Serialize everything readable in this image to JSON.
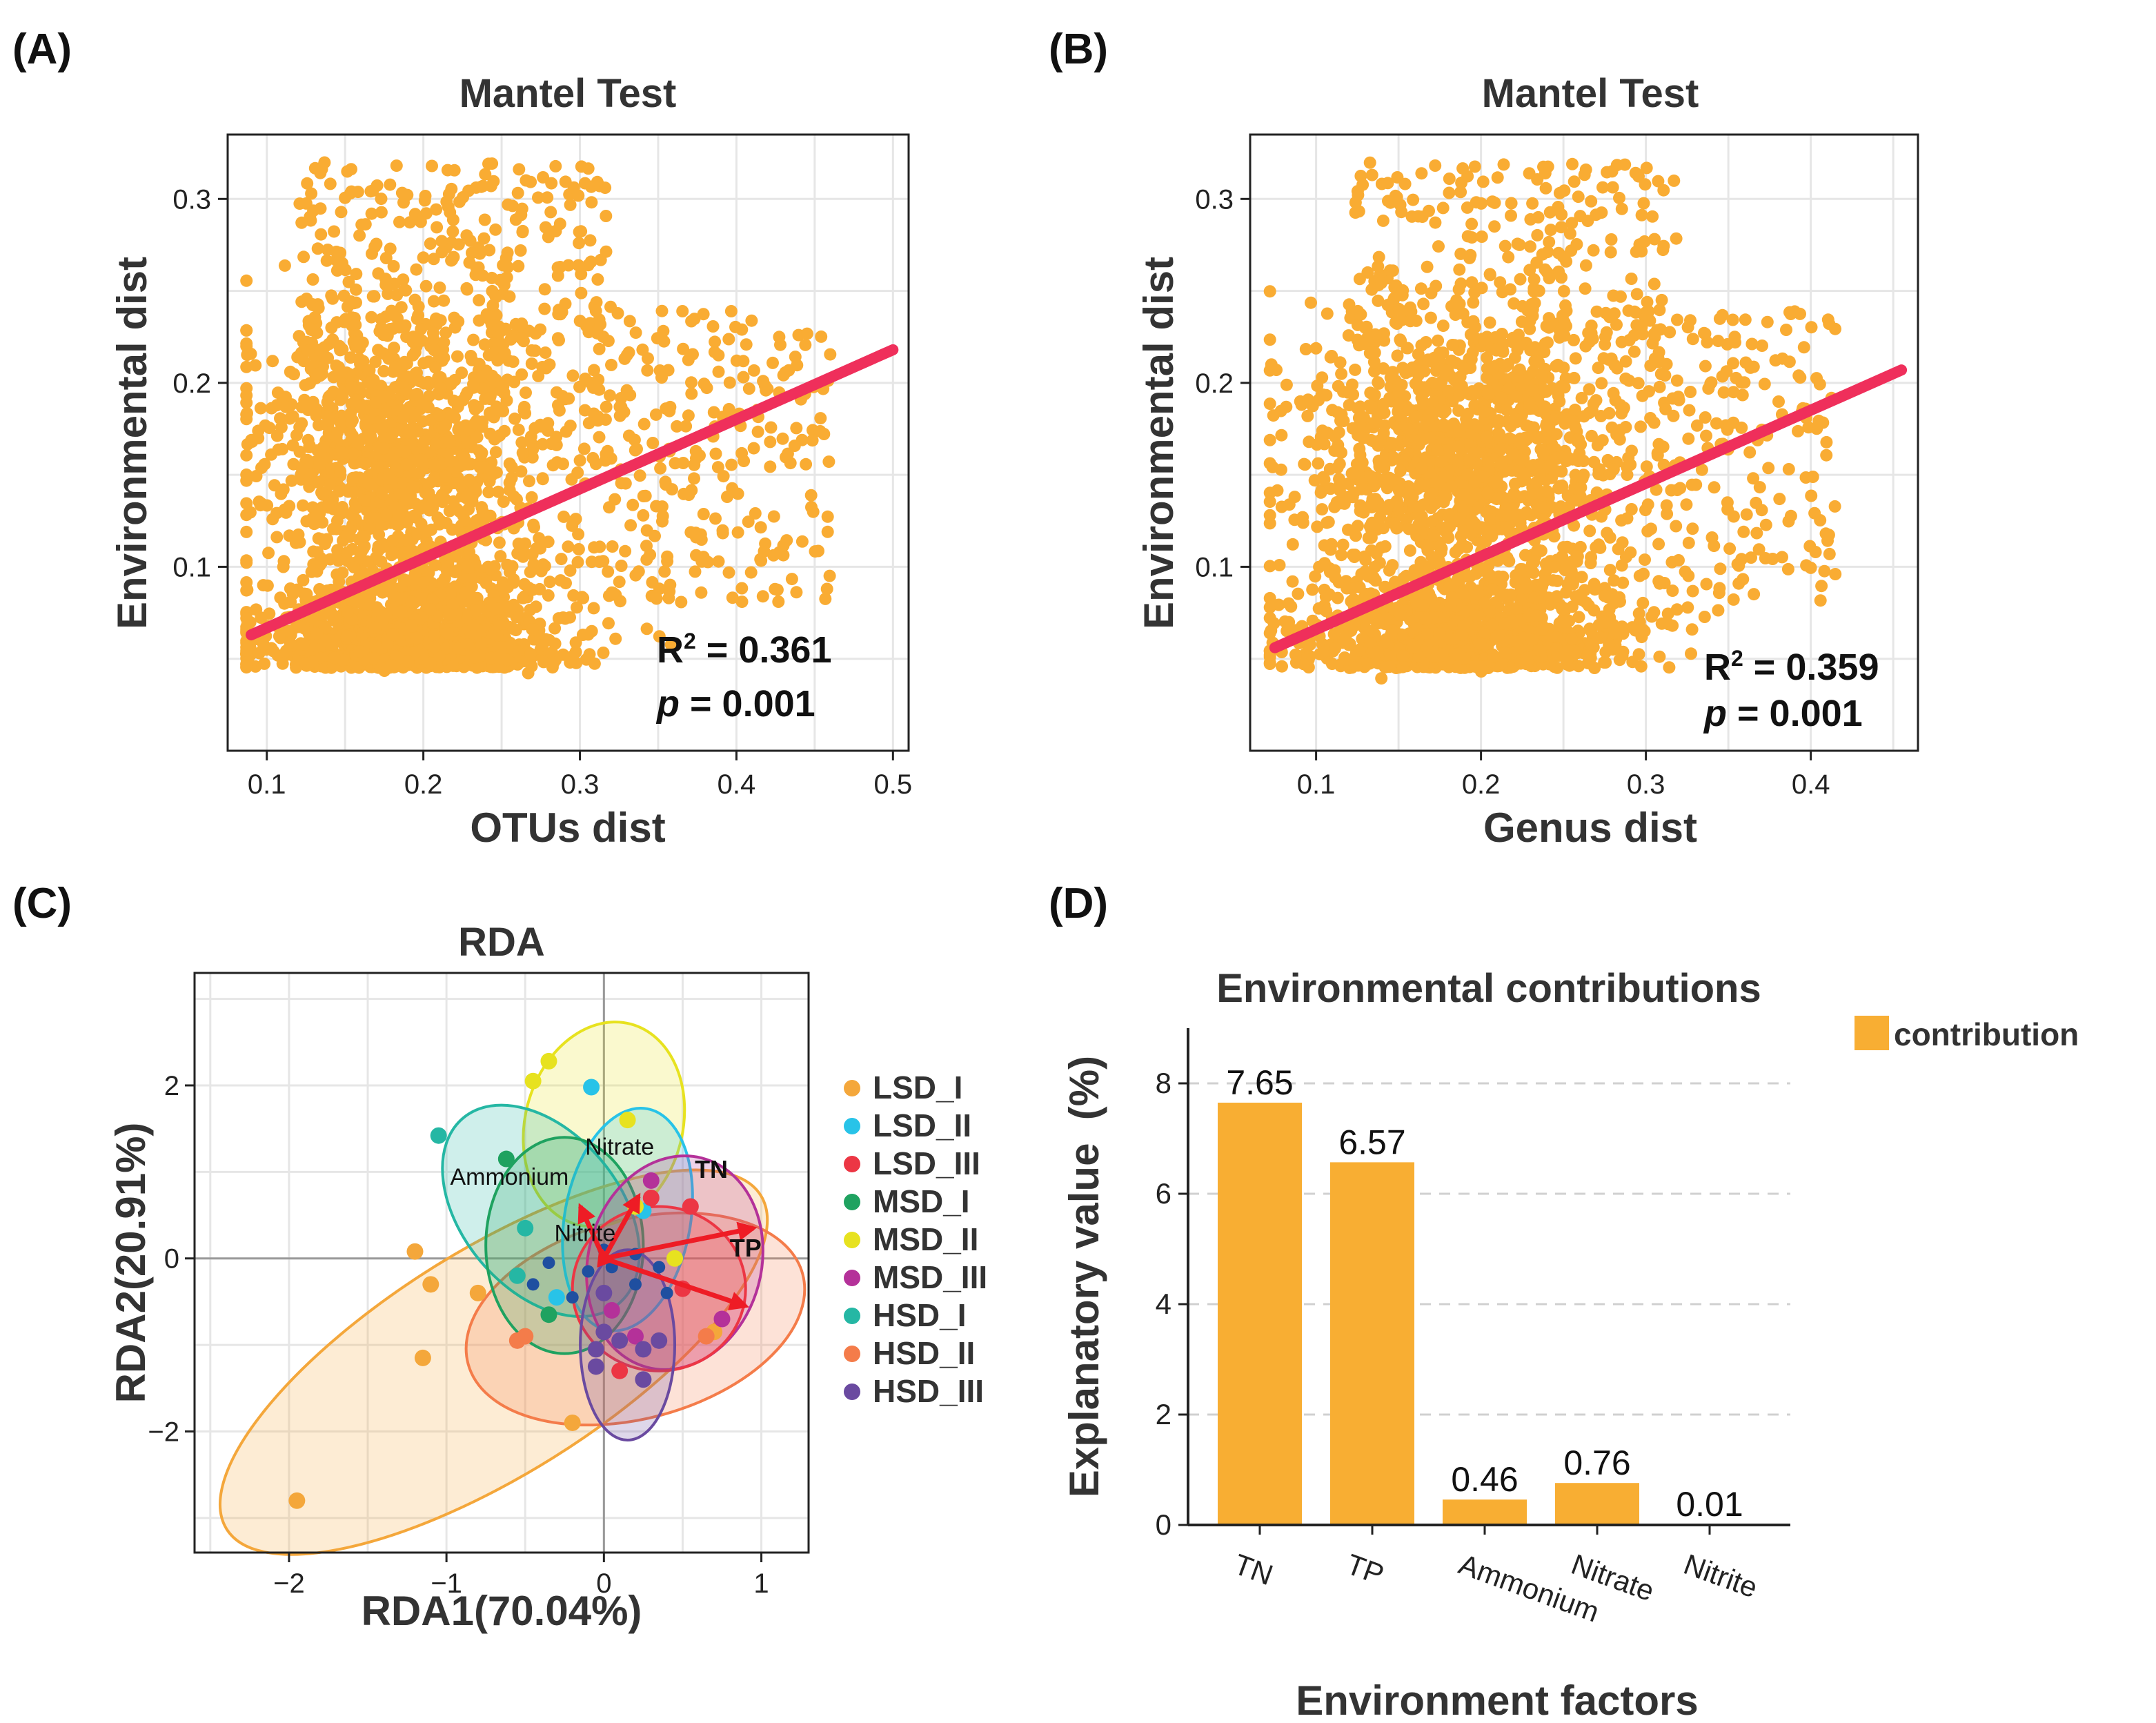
{
  "panel_labels": {
    "a": "(A)",
    "b": "(B)",
    "c": "(C)",
    "d": "(D)"
  },
  "colors": {
    "points": "#f9ac33",
    "regression": "#ef2f5b",
    "grid": "#e6e6e6",
    "bar": "#f8ae33",
    "vector": "#ee1c25",
    "LSD_I": "#f4a73b",
    "LSD_II": "#28c3e8",
    "LSD_III": "#ec3644",
    "MSD_I": "#1fa260",
    "MSD_II": "#e7e21f",
    "MSD_III": "#b43199",
    "HSD_I": "#25b7a4",
    "HSD_II": "#f47c4a",
    "HSD_III": "#6a4aa0",
    "centroid": "#1f4fa0"
  },
  "chart_data": [
    {
      "id": "A",
      "type": "scatter",
      "title": "Mantel Test",
      "xlabel": "OTUs dist",
      "ylabel": "Environmental dist",
      "xlim": [
        0.075,
        0.51
      ],
      "ylim": [
        0.0,
        0.335
      ],
      "xticks": [
        0.1,
        0.2,
        0.3,
        0.4,
        0.5
      ],
      "xtick_labels": [
        "0.1",
        "0.2",
        "0.3",
        "0.4",
        "0.5"
      ],
      "yticks": [
        0.1,
        0.2,
        0.3
      ],
      "ytick_labels": [
        "0.1",
        "0.2",
        "0.3"
      ],
      "regression": {
        "x": [
          0.09,
          0.5
        ],
        "y": [
          0.063,
          0.218
        ]
      },
      "stats": {
        "r2_prefix": "R",
        "r2_sup": "2",
        "r2_value": " = 0.361",
        "p_symbol": "p",
        "p_value": " = 0.001"
      },
      "n_points": 2800,
      "seed": 11
    },
    {
      "id": "B",
      "type": "scatter",
      "title": "Mantel Test",
      "xlabel": "Genus dist",
      "ylabel": "Environmental dist",
      "xlim": [
        0.06,
        0.465
      ],
      "ylim": [
        0.0,
        0.335
      ],
      "xticks": [
        0.1,
        0.2,
        0.3,
        0.4
      ],
      "xtick_labels": [
        "0.1",
        "0.2",
        "0.3",
        "0.4"
      ],
      "yticks": [
        0.1,
        0.2,
        0.3
      ],
      "ytick_labels": [
        "0.1",
        "0.2",
        "0.3"
      ],
      "regression": {
        "x": [
          0.075,
          0.455
        ],
        "y": [
          0.056,
          0.207
        ]
      },
      "stats": {
        "r2_prefix": "R",
        "r2_sup": "2",
        "r2_value": " = 0.359",
        "p_symbol": "p",
        "p_value": " = 0.001"
      },
      "n_points": 2800,
      "seed": 23
    },
    {
      "id": "C",
      "type": "scatter",
      "title": "RDA",
      "xlabel": "RDA1(70.04%)",
      "ylabel": "RDA2(20.91%)",
      "xlim": [
        -2.6,
        1.3
      ],
      "ylim": [
        -3.4,
        3.3
      ],
      "xticks": [
        -2,
        -1,
        0,
        1
      ],
      "xtick_labels": [
        "−2",
        "−1",
        "0",
        "1"
      ],
      "yticks": [
        -2,
        0,
        2
      ],
      "ytick_labels": [
        "−2",
        "0",
        "2"
      ],
      "legend": [
        "LSD_I",
        "LSD_II",
        "LSD_III",
        "MSD_I",
        "MSD_II",
        "MSD_III",
        "HSD_I",
        "HSD_II",
        "HSD_III"
      ],
      "ellipses": [
        {
          "group": "LSD_I",
          "cx": -0.7,
          "cy": -1.2,
          "rx": 2.0,
          "ry": 1.3,
          "angle": 32
        },
        {
          "group": "HSD_II",
          "cx": 0.2,
          "cy": -0.7,
          "rx": 1.1,
          "ry": 1.15,
          "angle": 15
        },
        {
          "group": "MSD_II",
          "cx": 0.0,
          "cy": 1.55,
          "rx": 0.5,
          "ry": 1.2,
          "angle": -15
        },
        {
          "group": "HSD_I",
          "cx": -0.4,
          "cy": 0.55,
          "rx": 0.5,
          "ry": 1.4,
          "angle": 40
        },
        {
          "group": "LSD_II",
          "cx": 0.15,
          "cy": 0.45,
          "rx": 0.4,
          "ry": 1.3,
          "angle": -10
        },
        {
          "group": "MSD_I",
          "cx": -0.25,
          "cy": 0.15,
          "rx": 0.5,
          "ry": 1.25,
          "angle": 0
        },
        {
          "group": "MSD_III",
          "cx": 0.45,
          "cy": -0.05,
          "rx": 0.55,
          "ry": 1.25,
          "angle": -15
        },
        {
          "group": "LSD_III",
          "cx": 0.35,
          "cy": -0.35,
          "rx": 0.55,
          "ry": 0.95,
          "angle": 0
        },
        {
          "group": "HSD_III",
          "cx": 0.15,
          "cy": -1.0,
          "rx": 0.3,
          "ry": 1.1,
          "angle": 0
        }
      ],
      "points": [
        {
          "g": "LSD_I",
          "x": -1.95,
          "y": -2.8
        },
        {
          "g": "LSD_I",
          "x": -1.2,
          "y": 0.08
        },
        {
          "g": "LSD_I",
          "x": -1.1,
          "y": -0.3
        },
        {
          "g": "LSD_I",
          "x": -1.15,
          "y": -1.15
        },
        {
          "g": "LSD_I",
          "x": -0.8,
          "y": -0.4
        },
        {
          "g": "LSD_I",
          "x": -0.2,
          "y": -1.9
        },
        {
          "g": "LSD_I",
          "x": 0.7,
          "y": -0.85
        },
        {
          "g": "LSD_II",
          "x": -0.08,
          "y": 1.98
        },
        {
          "g": "LSD_II",
          "x": -0.3,
          "y": -0.45
        },
        {
          "g": "LSD_II",
          "x": 0.25,
          "y": 0.55
        },
        {
          "g": "LSD_III",
          "x": 0.5,
          "y": -0.35
        },
        {
          "g": "LSD_III",
          "x": 0.3,
          "y": 0.7
        },
        {
          "g": "LSD_III",
          "x": 0.55,
          "y": 0.6
        },
        {
          "g": "LSD_III",
          "x": 0.1,
          "y": -1.3
        },
        {
          "g": "MSD_I",
          "x": -0.62,
          "y": 1.15
        },
        {
          "g": "MSD_I",
          "x": -0.35,
          "y": -0.65
        },
        {
          "g": "MSD_II",
          "x": -0.35,
          "y": 2.28
        },
        {
          "g": "MSD_II",
          "x": -0.45,
          "y": 2.05
        },
        {
          "g": "MSD_II",
          "x": 0.15,
          "y": 1.6
        },
        {
          "g": "MSD_II",
          "x": 0.2,
          "y": 0.6
        },
        {
          "g": "MSD_II",
          "x": 0.45,
          "y": 0.0
        },
        {
          "g": "MSD_III",
          "x": 0.3,
          "y": 0.9
        },
        {
          "g": "MSD_III",
          "x": 0.75,
          "y": -0.7
        },
        {
          "g": "MSD_III",
          "x": 0.2,
          "y": -0.9
        },
        {
          "g": "MSD_III",
          "x": 0.05,
          "y": -0.6
        },
        {
          "g": "HSD_I",
          "x": -1.05,
          "y": 1.42
        },
        {
          "g": "HSD_I",
          "x": -0.5,
          "y": 0.35
        },
        {
          "g": "HSD_I",
          "x": -0.55,
          "y": -0.2
        },
        {
          "g": "HSD_II",
          "x": -0.55,
          "y": -0.95
        },
        {
          "g": "HSD_II",
          "x": -0.5,
          "y": -0.9
        },
        {
          "g": "HSD_II",
          "x": 0.65,
          "y": -0.9
        },
        {
          "g": "HSD_III",
          "x": 0.0,
          "y": -0.4
        },
        {
          "g": "HSD_III",
          "x": 0.0,
          "y": -0.85
        },
        {
          "g": "HSD_III",
          "x": 0.1,
          "y": -0.95
        },
        {
          "g": "HSD_III",
          "x": 0.25,
          "y": -1.05
        },
        {
          "g": "HSD_III",
          "x": 0.35,
          "y": -0.95
        },
        {
          "g": "HSD_III",
          "x": -0.05,
          "y": -1.25
        },
        {
          "g": "HSD_III",
          "x": 0.25,
          "y": -1.4
        },
        {
          "g": "HSD_III",
          "x": -0.05,
          "y": -1.05
        },
        {
          "g": "centroid",
          "x": -0.45,
          "y": -0.3
        },
        {
          "g": "centroid",
          "x": -0.1,
          "y": -0.15
        },
        {
          "g": "centroid",
          "x": 0.05,
          "y": -0.1
        },
        {
          "g": "centroid",
          "x": 0.2,
          "y": 0.05
        },
        {
          "g": "centroid",
          "x": 0.35,
          "y": -0.1
        },
        {
          "g": "centroid",
          "x": 0.2,
          "y": -0.3
        },
        {
          "g": "centroid",
          "x": -0.2,
          "y": -0.45
        },
        {
          "g": "centroid",
          "x": 0.4,
          "y": -0.4
        },
        {
          "g": "centroid",
          "x": 0.0,
          "y": 0.1
        },
        {
          "g": "centroid",
          "x": -0.35,
          "y": -0.05
        }
      ],
      "vectors": [
        {
          "name": "TN",
          "x": 0.95,
          "y": 0.35
        },
        {
          "name": "TP",
          "x": 0.9,
          "y": -0.55
        },
        {
          "name": "Nitrate",
          "x": 0.22,
          "y": 0.72
        },
        {
          "name": "Ammonium",
          "x": -0.15,
          "y": 0.6
        },
        {
          "name": "Nitrite",
          "x": -0.02,
          "y": 0.1
        }
      ]
    },
    {
      "id": "D",
      "type": "bar",
      "title": "Environmental contributions",
      "xlabel": "Environment factors",
      "ylabel": "Explanatory value  (%)",
      "categories": [
        "TN",
        "TP",
        "Ammonium",
        "Nitrate",
        "Nitrite"
      ],
      "values": [
        7.65,
        6.57,
        0.46,
        0.76,
        0.01
      ],
      "value_labels": [
        "7.65",
        "6.57",
        "0.46",
        "0.76",
        "0.01"
      ],
      "ylim": [
        0,
        9
      ],
      "yticks": [
        0,
        2,
        4,
        6,
        8
      ],
      "ytick_labels": [
        "0",
        "2",
        "4",
        "6",
        "8"
      ],
      "legend": [
        "contribution"
      ]
    }
  ]
}
